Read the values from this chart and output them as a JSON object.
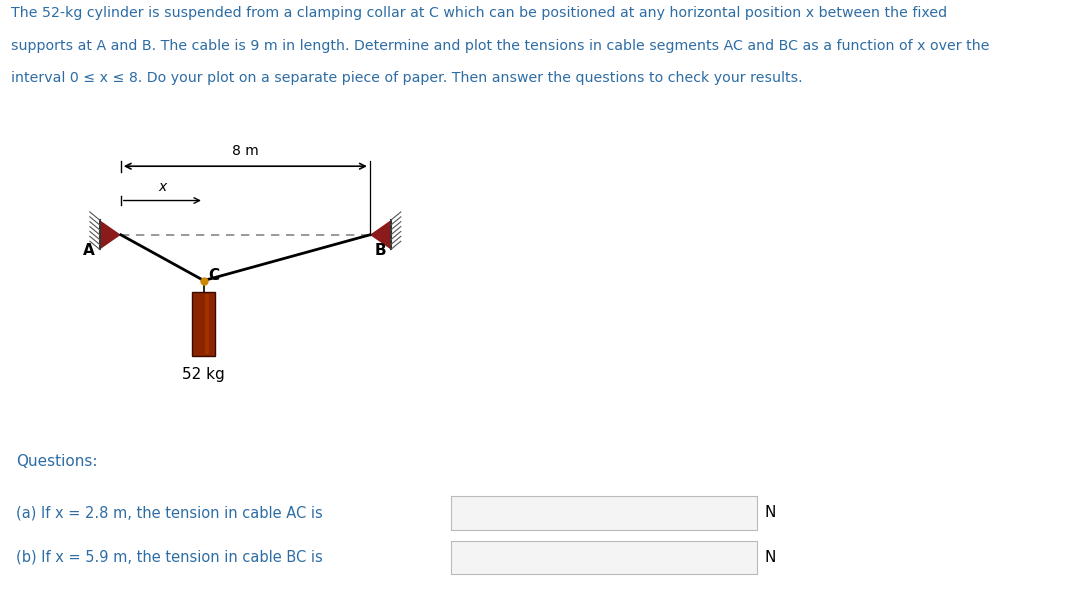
{
  "title_text_line1": "The 52-kg cylinder is suspended from a clamping collar at C which can be positioned at any horizontal position x between the fixed",
  "title_text_line2": "supports at A and B. The cable is 9 m in length. Determine and plot the tensions in cable segments AC and BC as a function of x over the",
  "title_text_line3": "interval 0 ≤ x ≤ 8. Do your plot on a separate piece of paper. Then answer the questions to check your results.",
  "title_color": "#2e6da4",
  "body_bg": "#ffffff",
  "support_color": "#8B1A1A",
  "cable_color": "#000000",
  "cylinder_face": "#8B2500",
  "cylinder_highlight": "#C04000",
  "cylinder_edge": "#3A0A00",
  "dashed_color": "#888888",
  "label_color": "#2e6da4",
  "questions_label": "Questions:",
  "question_a": "(a) If x = 2.8 m, the tension in cable AC is",
  "question_b": "(b) If x = 5.9 m, the tension in cable BC is",
  "unit_N": "N",
  "input_box_color": "#2196F3",
  "mass_label": "52 kg",
  "label_A": "A",
  "label_B": "B",
  "label_C": "C",
  "label_8m": "8 m",
  "label_x": "x"
}
